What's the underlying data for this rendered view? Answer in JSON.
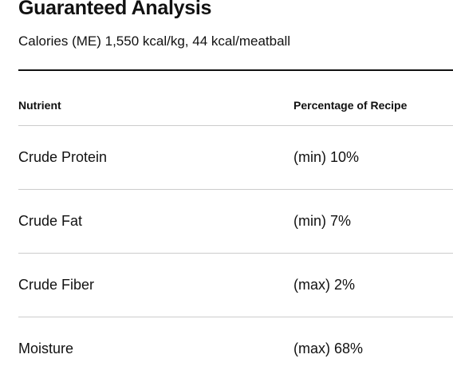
{
  "header": {
    "title": "Guaranteed Analysis",
    "subtitle": "Calories (ME) 1,550 kcal/kg, 44 kcal/meatball"
  },
  "table": {
    "columns": [
      "Nutrient",
      "Percentage of Recipe"
    ],
    "rows": [
      [
        "Crude Protein",
        "(min) 10%"
      ],
      [
        "Crude Fat",
        "(min) 7%"
      ],
      [
        "Crude Fiber",
        "(max) 2%"
      ],
      [
        "Moisture",
        "(max) 68%"
      ]
    ]
  }
}
